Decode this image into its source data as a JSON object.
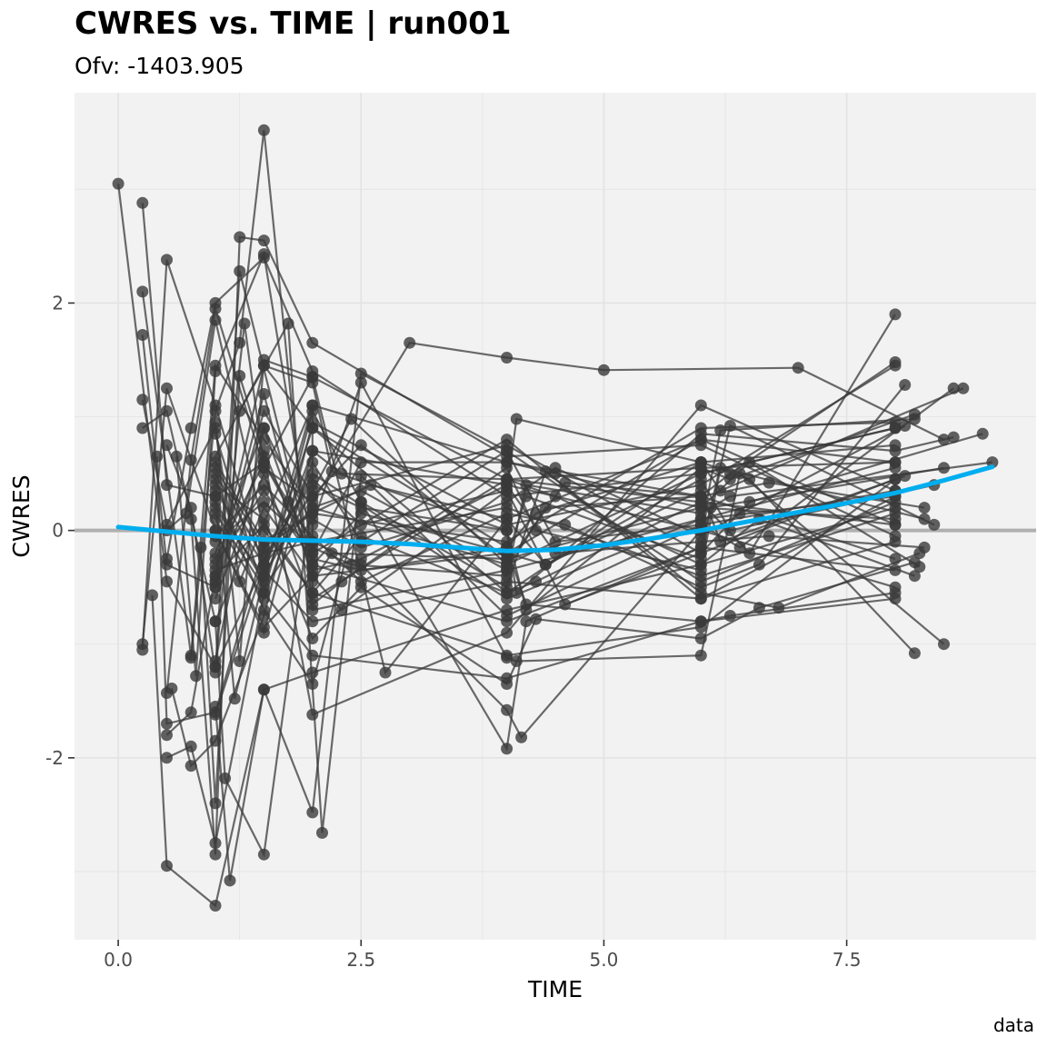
{
  "chart_data": {
    "type": "scatter",
    "title": "CWRES vs. TIME | run001",
    "subtitle": "Ofv: -1403.905",
    "xlabel": "TIME",
    "ylabel": "CWRES",
    "caption": "data",
    "xlim": [
      -0.45,
      9.45
    ],
    "ylim": [
      -3.6,
      3.85
    ],
    "x_ticks": [
      0.0,
      2.5,
      5.0,
      7.5
    ],
    "x_tick_labels": [
      "0.0",
      "2.5",
      "5.0",
      "7.5"
    ],
    "y_ticks": [
      -2,
      0,
      2
    ],
    "y_tick_labels": [
      "-2",
      "0",
      "2"
    ],
    "grid": true,
    "reference_line_y": 0,
    "colors": {
      "panel": "#f2f2f2",
      "grid": "#e3e3e3",
      "points_lines": "#3a3a3a",
      "reference": "#b0b0b0",
      "smooth": "#00aeef"
    },
    "series": [
      {
        "x": [
          0.0,
          0.5,
          1.0,
          1.5,
          2.0,
          4.0,
          6.0,
          8.0
        ],
        "y": [
          3.05,
          -0.45,
          -1.2,
          -0.3,
          0.5,
          -0.6,
          0.1,
          0.3
        ]
      },
      {
        "x": [
          0.25,
          0.5,
          1.0,
          1.5,
          2.0,
          4.0,
          6.0,
          8.0
        ],
        "y": [
          2.88,
          0.4,
          0.3,
          0.6,
          -0.1,
          0.2,
          -0.4,
          0.15
        ]
      },
      {
        "x": [
          0.25,
          0.75,
          1.0,
          1.5,
          2.0,
          4.0,
          6.0,
          8.0
        ],
        "y": [
          2.1,
          -1.1,
          1.45,
          0.8,
          0.2,
          -0.3,
          0.5,
          0.9
        ]
      },
      {
        "x": [
          0.25,
          0.5,
          1.0,
          1.5,
          2.0,
          4.0,
          6.0,
          8.0
        ],
        "y": [
          1.72,
          -0.3,
          -0.5,
          1.05,
          0.3,
          0.75,
          -0.2,
          0.45
        ]
      },
      {
        "x": [
          0.25,
          0.5,
          1.0,
          1.25,
          2.0,
          4.0,
          6.0,
          8.0
        ],
        "y": [
          1.15,
          0.05,
          0.9,
          -0.45,
          1.1,
          0.6,
          0.3,
          -0.25
        ]
      },
      {
        "x": [
          0.25,
          0.5,
          1.0,
          1.5,
          2.0,
          4.0,
          6.0,
          8.0
        ],
        "y": [
          0.9,
          1.05,
          -0.8,
          0.2,
          -0.4,
          -0.2,
          0.8,
          0.6
        ]
      },
      {
        "x": [
          0.25,
          0.5,
          1.0,
          1.5,
          2.0,
          4.0,
          6.0,
          8.0
        ],
        "y": [
          -1.0,
          1.25,
          0.0,
          -0.9,
          0.7,
          0.4,
          0.0,
          -0.5
        ]
      },
      {
        "x": [
          0.25,
          0.5,
          1.0,
          1.5,
          2.0,
          4.0,
          6.0,
          8.0
        ],
        "y": [
          -1.05,
          2.38,
          1.1,
          -0.35,
          -0.8,
          -0.45,
          -0.6,
          0.3
        ]
      },
      {
        "x": [
          0.4,
          0.5,
          1.0,
          1.5,
          2.0,
          4.0,
          6.0,
          8.0
        ],
        "y": [
          0.65,
          -1.7,
          -1.6,
          -0.15,
          0.15,
          -0.1,
          0.9,
          0.95
        ]
      },
      {
        "x": [
          0.35,
          0.5,
          1.0,
          1.5,
          2.0,
          4.0,
          6.0,
          8.0
        ],
        "y": [
          -0.57,
          -2.95,
          -3.3,
          -1.4,
          -1.25,
          -0.7,
          -0.3,
          0.2
        ]
      },
      {
        "x": [
          0.5,
          0.75,
          1.0,
          1.5,
          2.0,
          4.0,
          6.0,
          8.0
        ],
        "y": [
          -1.43,
          0.62,
          1.95,
          0.55,
          1.35,
          0.45,
          0.25,
          0.05
        ]
      },
      {
        "x": [
          0.5,
          0.75,
          1.0,
          1.5,
          2.0,
          4.0,
          6.0,
          8.0
        ],
        "y": [
          -1.8,
          -1.6,
          -0.4,
          1.45,
          0.9,
          -0.55,
          0.6,
          0.75
        ]
      },
      {
        "x": [
          0.5,
          0.75,
          1.0,
          1.5,
          2.0,
          4.0,
          6.0,
          8.0
        ],
        "y": [
          -2.0,
          -1.9,
          -2.75,
          -0.55,
          -1.1,
          -1.3,
          -0.8,
          -0.6
        ]
      },
      {
        "x": [
          0.5,
          0.75,
          1.0,
          1.5,
          2.0,
          4.0,
          6.0,
          8.0
        ],
        "y": [
          -0.25,
          0.9,
          2.0,
          2.4,
          1.4,
          0.3,
          0.5,
          0.9
        ]
      },
      {
        "x": [
          0.5,
          0.75,
          1.0,
          1.25,
          2.0,
          4.0,
          6.0,
          8.0
        ],
        "y": [
          0.75,
          0.2,
          -1.25,
          2.28,
          -0.3,
          -0.8,
          -0.15,
          -0.35
        ]
      },
      {
        "x": [
          0.5,
          0.7,
          1.0,
          1.5,
          2.0,
          4.0,
          6.0,
          8.0
        ],
        "y": [
          0.0,
          0.15,
          1.85,
          0.0,
          -0.55,
          -1.1,
          -0.85,
          0.45
        ]
      },
      {
        "x": [
          0.55,
          0.75,
          1.0,
          1.5,
          2.0,
          4.0,
          6.0,
          8.0
        ],
        "y": [
          -1.39,
          -2.07,
          -1.85,
          -0.75,
          0.95,
          0.05,
          0.4,
          1.45
        ]
      },
      {
        "x": [
          0.6,
          0.8,
          1.0,
          1.5,
          2.0,
          4.0,
          6.0,
          8.0
        ],
        "y": [
          0.65,
          -1.28,
          1.4,
          2.43,
          -0.2,
          0.8,
          -0.6,
          -0.1
        ]
      },
      {
        "x": [
          0.75,
          1.0,
          1.25,
          1.5,
          2.0,
          4.0,
          6.0,
          8.0
        ],
        "y": [
          -1.12,
          1.05,
          1.65,
          3.52,
          -0.7,
          -0.35,
          0.1,
          0.55
        ]
      },
      {
        "x": [
          0.75,
          1.0,
          1.25,
          1.5,
          2.0,
          4.0,
          6.0,
          8.0
        ],
        "y": [
          0.1,
          -2.85,
          2.58,
          2.55,
          1.65,
          0.65,
          0.75,
          -0.05
        ]
      },
      {
        "x": [
          0.85,
          1.0,
          1.25,
          1.5,
          2.0,
          4.0,
          6.0,
          8.0
        ],
        "y": [
          -0.15,
          -2.4,
          1.36,
          0.65,
          -1.62,
          -0.9,
          1.1,
          0.35
        ]
      },
      {
        "x": [
          1.0,
          1.15,
          1.5,
          2.0,
          2.5,
          4.0,
          6.0,
          8.0
        ],
        "y": [
          -1.55,
          -3.08,
          -1.4,
          -2.48,
          1.38,
          0.7,
          -0.45,
          0.25
        ]
      },
      {
        "x": [
          1.0,
          1.1,
          1.5,
          2.0,
          2.5,
          4.0,
          6.0,
          8.0
        ],
        "y": [
          -0.8,
          -2.18,
          -2.85,
          0.3,
          0.75,
          -0.25,
          0.2,
          0.1
        ]
      },
      {
        "x": [
          1.0,
          1.2,
          1.5,
          2.0,
          2.0,
          4.0,
          6.0,
          8.0
        ],
        "y": [
          0.3,
          -1.48,
          -0.4,
          1.1,
          -0.6,
          0.45,
          0.55,
          0.6
        ]
      },
      {
        "x": [
          1.0,
          1.25,
          1.75,
          2.1,
          2.5,
          4.0,
          6.0,
          8.0
        ],
        "y": [
          -1.2,
          1.05,
          1.82,
          -2.66,
          0.48,
          -0.75,
          0.05,
          0.35
        ]
      },
      {
        "x": [
          1.0,
          1.25,
          1.5,
          2.0,
          2.75,
          4.0,
          6.0,
          8.0
        ],
        "y": [
          0.95,
          -1.15,
          1.5,
          1.35,
          -1.25,
          0.1,
          0.8,
          0.05
        ]
      },
      {
        "x": [
          1.0,
          1.3,
          1.5,
          2.0,
          3.0,
          4.0,
          5.0,
          7.0,
          8.5
        ],
        "y": [
          -0.45,
          1.82,
          0.55,
          0.25,
          1.65,
          1.52,
          1.41,
          1.43,
          0.8
        ]
      },
      {
        "x": [
          1.0,
          1.5,
          2.0,
          2.2,
          4.0,
          4.1,
          6.0,
          8.0,
          8.6
        ],
        "y": [
          0.65,
          1.45,
          1.3,
          0.52,
          0.0,
          -0.55,
          0.85,
          0.7,
          0.82
        ]
      },
      {
        "x": [
          1.0,
          1.5,
          1.75,
          2.0,
          4.0,
          4.2,
          6.0,
          6.3,
          8.0
        ],
        "y": [
          -1.62,
          -0.3,
          0.25,
          0.9,
          -0.15,
          -0.65,
          -0.8,
          -0.75,
          -0.55
        ]
      },
      {
        "x": [
          1.0,
          1.5,
          2.0,
          2.3,
          4.0,
          4.1,
          6.0,
          6.5,
          8.2
        ],
        "y": [
          0.0,
          -0.85,
          -0.4,
          -0.7,
          0.35,
          0.98,
          0.6,
          0.45,
          -1.08
        ]
      },
      {
        "x": [
          1.0,
          1.5,
          2.0,
          2.5,
          4.0,
          4.15,
          6.0,
          6.2,
          8.2
        ],
        "y": [
          -0.35,
          -0.2,
          -0.1,
          -0.3,
          -1.58,
          -1.82,
          0.0,
          0.88,
          0.98
        ]
      },
      {
        "x": [
          1.0,
          1.5,
          2.0,
          2.5,
          4.0,
          4.1,
          6.0,
          6.4,
          8.5
        ],
        "y": [
          -1.15,
          0.9,
          0.05,
          1.3,
          -1.12,
          -1.15,
          -1.1,
          0.5,
          -1.0
        ]
      },
      {
        "x": [
          1.0,
          1.5,
          2.0,
          2.5,
          4.0,
          4.2,
          6.0,
          6.3,
          8.4
        ],
        "y": [
          0.45,
          -0.7,
          -1.35,
          0.25,
          -1.92,
          -0.8,
          -0.15,
          0.92,
          0.05
        ]
      },
      {
        "x": [
          1.0,
          1.5,
          2.0,
          2.5,
          4.0,
          4.3,
          6.0,
          6.6,
          8.2
        ],
        "y": [
          0.4,
          0.1,
          -0.95,
          -0.5,
          -1.35,
          -0.78,
          -0.95,
          -0.68,
          -0.28
        ]
      },
      {
        "x": [
          1.0,
          1.5,
          2.0,
          2.5,
          4.0,
          4.4,
          6.0,
          6.8,
          8.25
        ],
        "y": [
          0.85,
          -0.55,
          1.05,
          0.25,
          -0.5,
          0.52,
          -0.55,
          -0.68,
          -0.2
        ]
      },
      {
        "x": [
          1.0,
          1.5,
          2.0,
          2.5,
          4.0,
          4.5,
          6.0,
          6.5,
          8.25
        ],
        "y": [
          -0.25,
          0.6,
          -0.2,
          0.6,
          0.6,
          0.5,
          0.2,
          0.6,
          -0.32
        ]
      },
      {
        "x": [
          1.0,
          1.5,
          2.0,
          2.4,
          4.0,
          4.6,
          6.0,
          6.7,
          8.3
        ],
        "y": [
          0.2,
          -0.4,
          0.35,
          0.98,
          -0.3,
          0.42,
          0.3,
          0.42,
          0.2
        ]
      },
      {
        "x": [
          1.0,
          1.5,
          2.0,
          2.3,
          4.0,
          4.3,
          6.0,
          6.2,
          8.3
        ],
        "y": [
          -0.6,
          0.5,
          -0.65,
          -0.45,
          0.55,
          0.0,
          -0.35,
          0.55,
          0.1
        ]
      },
      {
        "x": [
          1.0,
          1.5,
          2.0,
          2.6,
          4.0,
          4.4,
          6.0,
          6.3,
          8.4
        ],
        "y": [
          0.6,
          -0.1,
          0.15,
          0.4,
          0.1,
          -0.3,
          0.45,
          0.0,
          0.4
        ]
      },
      {
        "x": [
          1.0,
          1.5,
          2.0,
          2.2,
          4.0,
          4.2,
          6.0,
          6.1,
          8.5
        ],
        "y": [
          -0.45,
          1.2,
          -0.45,
          -0.2,
          -0.25,
          0.3,
          -0.25,
          0.2,
          0.55
        ]
      },
      {
        "x": [
          1.0,
          1.5,
          2.0,
          2.5,
          4.0,
          4.5,
          6.0,
          6.4,
          8.6
        ],
        "y": [
          0.1,
          -0.6,
          0.6,
          -0.1,
          0.7,
          -0.1,
          0.05,
          -0.15,
          1.25
        ]
      },
      {
        "x": [
          1.0,
          1.5,
          2.0,
          2.5,
          4.0,
          4.3,
          6.0,
          6.2,
          8.7
        ],
        "y": [
          -0.3,
          0.35,
          -0.25,
          -0.35,
          -0.15,
          0.15,
          0.6,
          0.35,
          1.25
        ]
      },
      {
        "x": [
          1.0,
          1.5,
          2.0,
          2.5,
          4.0,
          4.6,
          6.0,
          6.5,
          8.9
        ],
        "y": [
          0.5,
          -0.25,
          0.45,
          0.05,
          0.35,
          -0.65,
          -0.2,
          0.25,
          0.85
        ]
      },
      {
        "x": [
          1.0,
          1.5,
          2.0,
          2.4,
          4.0,
          4.2,
          6.0,
          6.3,
          9.0
        ],
        "y": [
          -0.1,
          0.25,
          -0.15,
          -0.3,
          -0.4,
          0.4,
          0.15,
          0.3,
          0.6
        ]
      },
      {
        "x": [
          1.0,
          1.5,
          2.0,
          2.3,
          4.0,
          4.5,
          6.0,
          6.6,
          8.2
        ],
        "y": [
          0.25,
          -0.45,
          0.7,
          0.5,
          0.45,
          0.3,
          -0.3,
          0.1,
          -0.4
        ]
      },
      {
        "x": [
          1.0,
          1.5,
          2.0,
          2.5,
          4.0,
          4.4,
          6.0,
          6.2,
          8.1
        ],
        "y": [
          -0.2,
          0.9,
          -0.3,
          0.15,
          -0.2,
          -0.3,
          0.35,
          -0.1,
          0.48
        ]
      },
      {
        "x": [
          1.0,
          1.5,
          2.0,
          2.5,
          4.0,
          4.5,
          6.0,
          6.4,
          8.1
        ],
        "y": [
          0.15,
          -0.5,
          0.1,
          -0.15,
          0.25,
          0.55,
          -0.05,
          0.15,
          0.92
        ]
      },
      {
        "x": [
          1.0,
          1.5,
          2.0,
          2.5,
          4.0,
          4.3,
          6.0,
          6.5,
          8.0
        ],
        "y": [
          -0.4,
          0.05,
          -0.55,
          -0.05,
          -0.55,
          -0.45,
          0.25,
          -0.2,
          1.9
        ]
      },
      {
        "x": [
          1.0,
          1.5,
          2.0,
          2.5,
          4.0,
          4.2,
          6.0,
          6.3,
          8.2
        ],
        "y": [
          0.55,
          -0.15,
          0.4,
          0.2,
          0.0,
          -0.7,
          0.55,
          0.45,
          1.02
        ]
      },
      {
        "x": [
          1.0,
          1.5,
          2.0,
          2.5,
          4.0,
          4.6,
          6.0,
          6.6,
          8.1
        ],
        "y": [
          -0.05,
          0.4,
          -0.05,
          -0.45,
          0.15,
          0.05,
          -0.5,
          -0.3,
          1.28
        ]
      },
      {
        "x": [
          1.0,
          1.5,
          2.0,
          2.5,
          4.0,
          4.4,
          6.0,
          6.3,
          8.0
        ],
        "y": [
          0.35,
          -0.3,
          0.2,
          0.35,
          -0.35,
          0.2,
          0.3,
          0.5,
          1.48
        ]
      },
      {
        "x": [
          1.0,
          1.5,
          2.0,
          2.5,
          4.0,
          4.5,
          6.0,
          6.7,
          8.3
        ],
        "y": [
          -0.5,
          0.7,
          -0.35,
          -0.25,
          0.4,
          -0.2,
          -0.1,
          -0.05,
          -0.15
        ]
      }
    ],
    "smooth": {
      "x": [
        0.0,
        0.5,
        1.0,
        1.5,
        2.0,
        2.5,
        3.0,
        3.5,
        4.0,
        4.5,
        5.0,
        5.5,
        6.0,
        6.5,
        7.0,
        7.5,
        8.0,
        8.5,
        9.0
      ],
      "y": [
        0.03,
        -0.01,
        -0.05,
        -0.08,
        -0.09,
        -0.1,
        -0.12,
        -0.15,
        -0.18,
        -0.17,
        -0.13,
        -0.07,
        0.0,
        0.08,
        0.16,
        0.24,
        0.33,
        0.44,
        0.56
      ]
    }
  }
}
